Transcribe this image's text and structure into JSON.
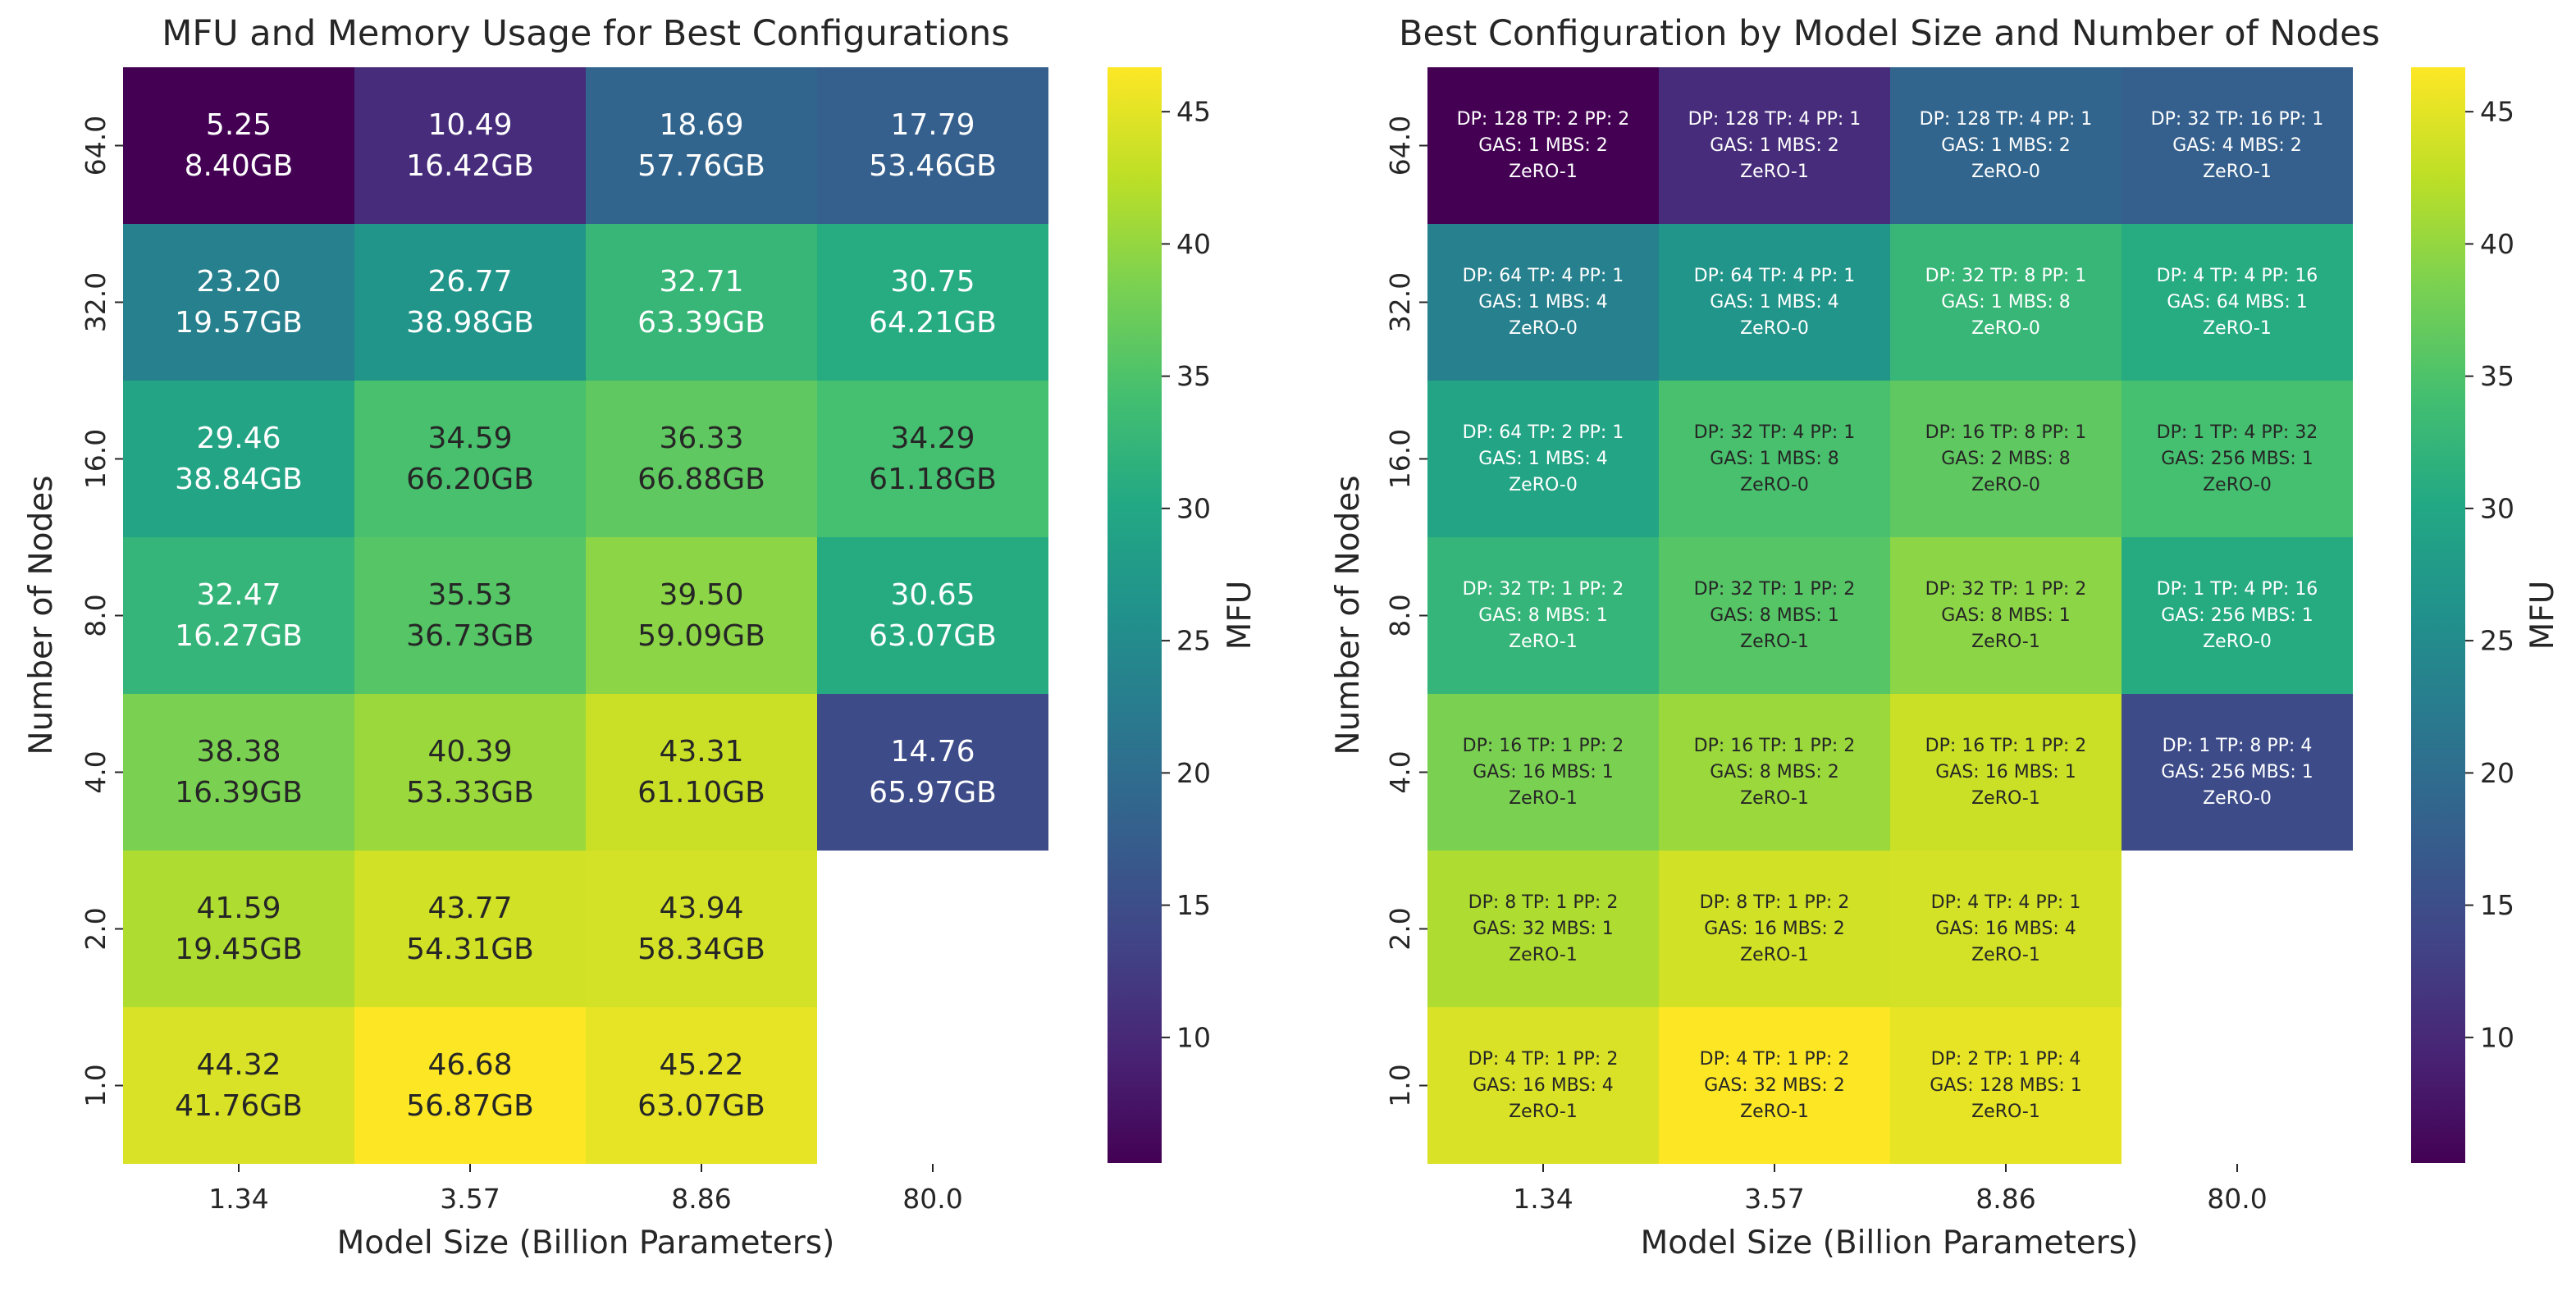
{
  "chart_data": [
    {
      "type": "heatmap",
      "title": "MFU and Memory Usage for Best Configurations",
      "xlabel": "Model Size (Billion Parameters)",
      "ylabel": "Number of Nodes",
      "x_categories": [
        "1.34",
        "3.57",
        "8.86",
        "80.0"
      ],
      "y_categories": [
        "64.0",
        "32.0",
        "16.0",
        "8.0",
        "4.0",
        "2.0",
        "1.0"
      ],
      "colorbar": {
        "label": "MFU",
        "range": [
          5.25,
          46.68
        ],
        "ticks": [
          "10",
          "15",
          "20",
          "25",
          "30",
          "35",
          "40",
          "45"
        ],
        "colormap": "viridis"
      },
      "values": [
        [
          5.25,
          10.49,
          18.69,
          17.79
        ],
        [
          23.2,
          26.77,
          32.71,
          30.75
        ],
        [
          29.46,
          34.59,
          36.33,
          34.29
        ],
        [
          32.47,
          35.53,
          39.5,
          30.65
        ],
        [
          38.38,
          40.39,
          43.31,
          14.76
        ],
        [
          41.59,
          43.77,
          43.94,
          null
        ],
        [
          44.32,
          46.68,
          45.22,
          null
        ]
      ],
      "annotations": [
        [
          [
            "5.25",
            "8.40GB"
          ],
          [
            "10.49",
            "16.42GB"
          ],
          [
            "18.69",
            "57.76GB"
          ],
          [
            "17.79",
            "53.46GB"
          ]
        ],
        [
          [
            "23.20",
            "19.57GB"
          ],
          [
            "26.77",
            "38.98GB"
          ],
          [
            "32.71",
            "63.39GB"
          ],
          [
            "30.75",
            "64.21GB"
          ]
        ],
        [
          [
            "29.46",
            "38.84GB"
          ],
          [
            "34.59",
            "66.20GB"
          ],
          [
            "36.33",
            "66.88GB"
          ],
          [
            "34.29",
            "61.18GB"
          ]
        ],
        [
          [
            "32.47",
            "16.27GB"
          ],
          [
            "35.53",
            "36.73GB"
          ],
          [
            "39.50",
            "59.09GB"
          ],
          [
            "30.65",
            "63.07GB"
          ]
        ],
        [
          [
            "38.38",
            "16.39GB"
          ],
          [
            "40.39",
            "53.33GB"
          ],
          [
            "43.31",
            "61.10GB"
          ],
          [
            "14.76",
            "65.97GB"
          ]
        ],
        [
          [
            "41.59",
            "19.45GB"
          ],
          [
            "43.77",
            "54.31GB"
          ],
          [
            "43.94",
            "58.34GB"
          ],
          null
        ],
        [
          [
            "44.32",
            "41.76GB"
          ],
          [
            "46.68",
            "56.87GB"
          ],
          [
            "45.22",
            "63.07GB"
          ],
          null
        ]
      ]
    },
    {
      "type": "heatmap",
      "title": "Best Configuration by Model Size and Number of Nodes",
      "xlabel": "Model Size (Billion Parameters)",
      "ylabel": "Number of Nodes",
      "x_categories": [
        "1.34",
        "3.57",
        "8.86",
        "80.0"
      ],
      "y_categories": [
        "64.0",
        "32.0",
        "16.0",
        "8.0",
        "4.0",
        "2.0",
        "1.0"
      ],
      "colorbar": {
        "label": "MFU",
        "range": [
          5.25,
          46.68
        ],
        "ticks": [
          "10",
          "15",
          "20",
          "25",
          "30",
          "35",
          "40",
          "45"
        ],
        "colormap": "viridis"
      },
      "values": [
        [
          5.25,
          10.49,
          18.69,
          17.79
        ],
        [
          23.2,
          26.77,
          32.71,
          30.75
        ],
        [
          29.46,
          34.59,
          36.33,
          34.29
        ],
        [
          32.47,
          35.53,
          39.5,
          30.65
        ],
        [
          38.38,
          40.39,
          43.31,
          14.76
        ],
        [
          41.59,
          43.77,
          43.94,
          null
        ],
        [
          44.32,
          46.68,
          45.22,
          null
        ]
      ],
      "annotations": [
        [
          [
            "DP: 128  TP: 2   PP: 2",
            "GAS: 1   MBS: 2",
            "ZeRO-1"
          ],
          [
            "DP: 128  TP: 4   PP: 1",
            "GAS: 1   MBS: 2",
            "ZeRO-1"
          ],
          [
            "DP: 128  TP: 4   PP: 1",
            "GAS: 1   MBS: 2",
            "ZeRO-0"
          ],
          [
            "DP: 32  TP: 16  PP: 1",
            "GAS: 4   MBS: 2",
            "ZeRO-1"
          ]
        ],
        [
          [
            "DP: 64   TP: 4   PP: 1",
            "GAS: 1   MBS: 4",
            "ZeRO-0"
          ],
          [
            "DP: 64   TP: 4   PP: 1",
            "GAS: 1   MBS: 4",
            "ZeRO-0"
          ],
          [
            "DP: 32   TP: 8   PP: 1",
            "GAS: 1   MBS: 8",
            "ZeRO-0"
          ],
          [
            "DP: 4    TP: 4   PP: 16",
            "GAS: 64  MBS: 1",
            "ZeRO-1"
          ]
        ],
        [
          [
            "DP: 64   TP: 2   PP: 1",
            "GAS: 1   MBS: 4",
            "ZeRO-0"
          ],
          [
            "DP: 32   TP: 4   PP: 1",
            "GAS: 1   MBS: 8",
            "ZeRO-0"
          ],
          [
            "DP: 16   TP: 8   PP: 1",
            "GAS: 2   MBS: 8",
            "ZeRO-0"
          ],
          [
            "DP: 1    TP: 4   PP: 32",
            "GAS: 256  MBS: 1",
            "ZeRO-0"
          ]
        ],
        [
          [
            "DP: 32   TP: 1   PP: 2",
            "GAS: 8   MBS: 1",
            "ZeRO-1"
          ],
          [
            "DP: 32   TP: 1   PP: 2",
            "GAS: 8   MBS: 1",
            "ZeRO-1"
          ],
          [
            "DP: 32   TP: 1   PP: 2",
            "GAS: 8   MBS: 1",
            "ZeRO-1"
          ],
          [
            "DP: 1    TP: 4   PP: 16",
            "GAS: 256  MBS: 1",
            "ZeRO-0"
          ]
        ],
        [
          [
            "DP: 16   TP: 1   PP: 2",
            "GAS: 16  MBS: 1",
            "ZeRO-1"
          ],
          [
            "DP: 16   TP: 1   PP: 2",
            "GAS: 8   MBS: 2",
            "ZeRO-1"
          ],
          [
            "DP: 16   TP: 1   PP: 2",
            "GAS: 16  MBS: 1",
            "ZeRO-1"
          ],
          [
            "DP: 1    TP: 8   PP: 4",
            "GAS: 256  MBS: 1",
            "ZeRO-0"
          ]
        ],
        [
          [
            "DP: 8    TP: 1   PP: 2",
            "GAS: 32  MBS: 1",
            "ZeRO-1"
          ],
          [
            "DP: 8    TP: 1   PP: 2",
            "GAS: 16  MBS: 2",
            "ZeRO-1"
          ],
          [
            "DP: 4    TP: 4   PP: 1",
            "GAS: 16  MBS: 4",
            "ZeRO-1"
          ],
          null
        ],
        [
          [
            "DP: 4    TP: 1   PP: 2",
            "GAS: 16  MBS: 4",
            "ZeRO-1"
          ],
          [
            "DP: 4    TP: 1   PP: 2",
            "GAS: 32  MBS: 2",
            "ZeRO-1"
          ],
          [
            "DP: 2    TP: 1   PP: 4",
            "GAS: 128  MBS: 1",
            "ZeRO-1"
          ],
          null
        ]
      ]
    }
  ]
}
